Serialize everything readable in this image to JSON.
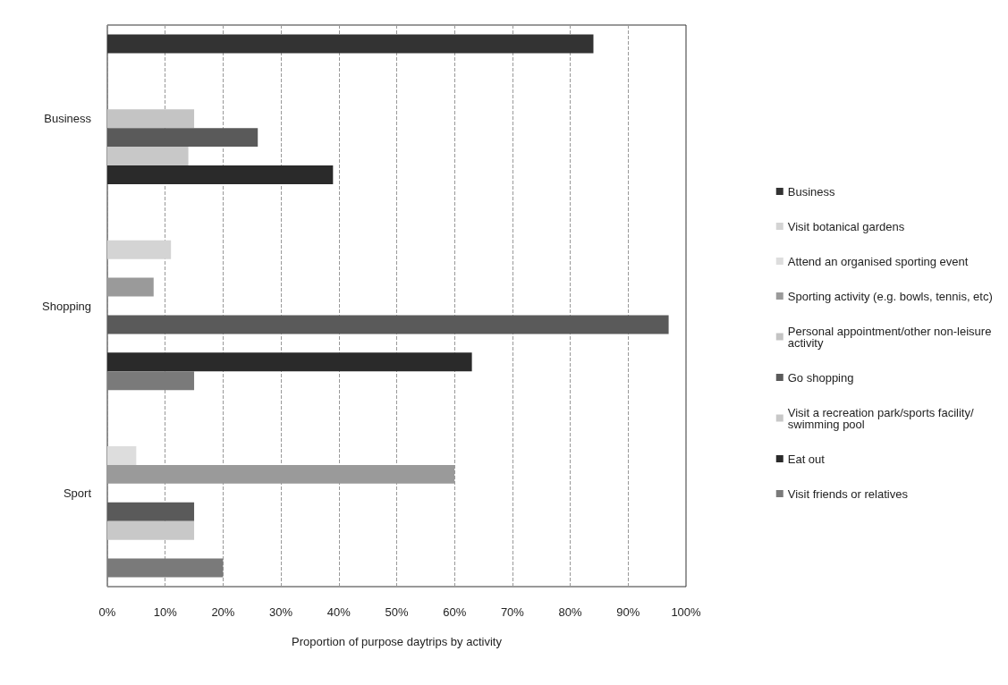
{
  "chart_data": {
    "type": "bar",
    "orientation": "horizontal",
    "xlabel": "Proportion of purpose daytrips by activity",
    "categories": [
      "Business",
      "Shopping",
      "Sport"
    ],
    "series": [
      {
        "name": "Business",
        "color": "#333333",
        "values": [
          84,
          null,
          null
        ]
      },
      {
        "name": "Visit botanical gardens",
        "color": "#d4d4d4",
        "values": [
          null,
          11,
          null
        ]
      },
      {
        "name": "Attend an organised sporting event",
        "color": "#dddddd",
        "values": [
          null,
          null,
          5
        ]
      },
      {
        "name": "Sporting activity (e.g. bowls, tennis, etc)",
        "color": "#9a9a9a",
        "values": [
          null,
          8,
          60
        ]
      },
      {
        "name": "Personal appointment/other non-leisure activity",
        "color": "#c4c4c4",
        "values": [
          15,
          null,
          null
        ]
      },
      {
        "name": "Go shopping",
        "color": "#5a5a5a",
        "values": [
          26,
          97,
          15
        ]
      },
      {
        "name": "Visit a recreation park/sports facility/swimming pool",
        "color": "#c8c8c8",
        "values": [
          14,
          null,
          15
        ]
      },
      {
        "name": "Eat out",
        "color": "#2a2a2a",
        "values": [
          39,
          63,
          null
        ]
      },
      {
        "name": "Visit friends or relatives",
        "color": "#7a7a7a",
        "values": [
          null,
          15,
          20
        ]
      }
    ],
    "xlim": [
      0,
      100
    ],
    "xticks": [
      {
        "value": 0,
        "label": "0%"
      },
      {
        "value": 10,
        "label": "10%"
      },
      {
        "value": 20,
        "label": "20%"
      },
      {
        "value": 30,
        "label": "30%"
      },
      {
        "value": 40,
        "label": "40%"
      },
      {
        "value": 50,
        "label": "50%"
      },
      {
        "value": 60,
        "label": "60%"
      },
      {
        "value": 70,
        "label": "70%"
      },
      {
        "value": 80,
        "label": "80%"
      },
      {
        "value": 90,
        "label": "90%"
      },
      {
        "value": 100,
        "label": "100%"
      }
    ],
    "grid": "x",
    "legend": "right"
  }
}
